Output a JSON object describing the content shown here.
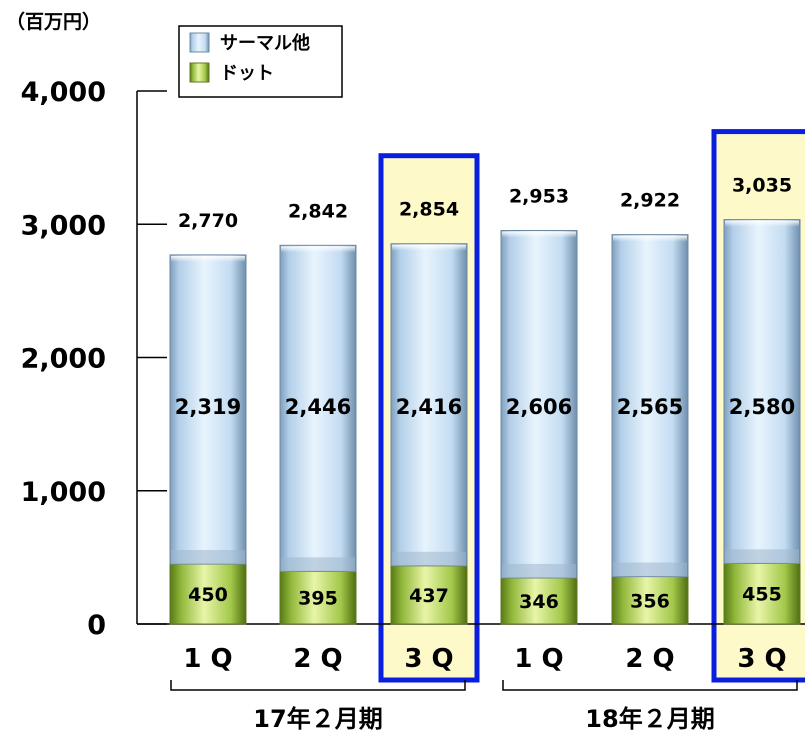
{
  "chart_data": {
    "type": "bar",
    "stacked": true,
    "unit_label": "（百万円）",
    "categories": [
      "1 Q",
      "2 Q",
      "3 Q",
      "1 Q",
      "2 Q",
      "3 Q"
    ],
    "groups": [
      {
        "label": "17年２月期",
        "categories": [
          0,
          1,
          2
        ]
      },
      {
        "label": "18年２月期",
        "categories": [
          3,
          4,
          5
        ]
      }
    ],
    "series": [
      {
        "name": "ドット",
        "values": [
          450,
          395,
          437,
          346,
          356,
          455
        ],
        "labels": [
          "450",
          "395",
          "437",
          "346",
          "356",
          "455"
        ]
      },
      {
        "name": "サーマル他",
        "values": [
          2319,
          2446,
          2416,
          2606,
          2565,
          2580
        ],
        "labels": [
          "2,319",
          "2,446",
          "2,416",
          "2,606",
          "2,565",
          "2,580"
        ]
      }
    ],
    "totals": [
      2770,
      2842,
      2854,
      2953,
      2922,
      3035
    ],
    "total_labels": [
      "2,770",
      "2,842",
      "2,854",
      "2,953",
      "2,922",
      "3,035"
    ],
    "highlighted_categories": [
      2,
      5
    ],
    "ylim": [
      0,
      4000
    ],
    "yticks": [
      0,
      1000,
      2000,
      3000,
      4000
    ],
    "ytick_labels": [
      "0",
      "1,000",
      "2,000",
      "3,000",
      "4,000"
    ],
    "legend": {
      "placement": "top-left",
      "entries": [
        {
          "name": "サーマル他",
          "series": 1
        },
        {
          "name": "ドット",
          "series": 0
        }
      ]
    },
    "colors": {
      "thermal": "#bcd8f0",
      "dot": "#8aae2c",
      "highlight_fill": "#fdf9c8",
      "highlight_border": "#0a1ee0"
    }
  }
}
